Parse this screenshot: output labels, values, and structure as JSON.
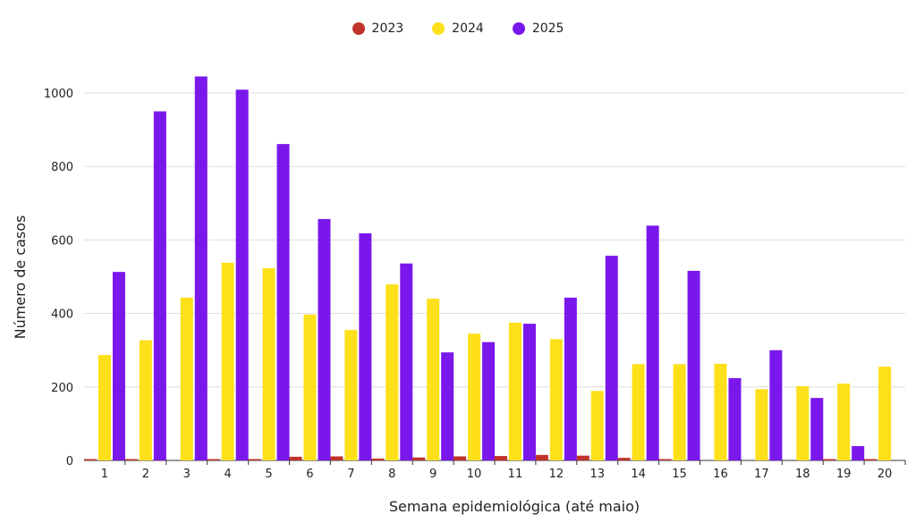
{
  "colors": {
    "s2023": "#c0332b",
    "s2024": "#fde01a",
    "s2025": "#7a18ec",
    "grid": "#dddddd",
    "axis": "#333333"
  },
  "chart_data": {
    "type": "bar",
    "title": "",
    "xlabel": "Semana epidemiológica (até maio)",
    "ylabel": "Número de casos",
    "ylim": [
      0,
      1100
    ],
    "yticks": [
      0,
      200,
      400,
      600,
      800,
      1000
    ],
    "categories": [
      "1",
      "2",
      "3",
      "4",
      "5",
      "6",
      "7",
      "8",
      "9",
      "10",
      "11",
      "12",
      "13",
      "14",
      "15",
      "16",
      "17",
      "18",
      "19",
      "20"
    ],
    "series": [
      {
        "name": "2023",
        "values": [
          2,
          2,
          0,
          1,
          2,
          10,
          11,
          5,
          8,
          11,
          12,
          15,
          13,
          7,
          2,
          0,
          0,
          0,
          1,
          1
        ]
      },
      {
        "name": "2024",
        "values": [
          287,
          327,
          443,
          538,
          523,
          397,
          355,
          479,
          440,
          345,
          375,
          330,
          189,
          262,
          262,
          263,
          194,
          202,
          209,
          255
        ]
      },
      {
        "name": "2025",
        "values": [
          513,
          950,
          1045,
          1009,
          861,
          657,
          618,
          536,
          294,
          322,
          372,
          443,
          557,
          639,
          516,
          224,
          300,
          170,
          39,
          0
        ]
      }
    ]
  }
}
